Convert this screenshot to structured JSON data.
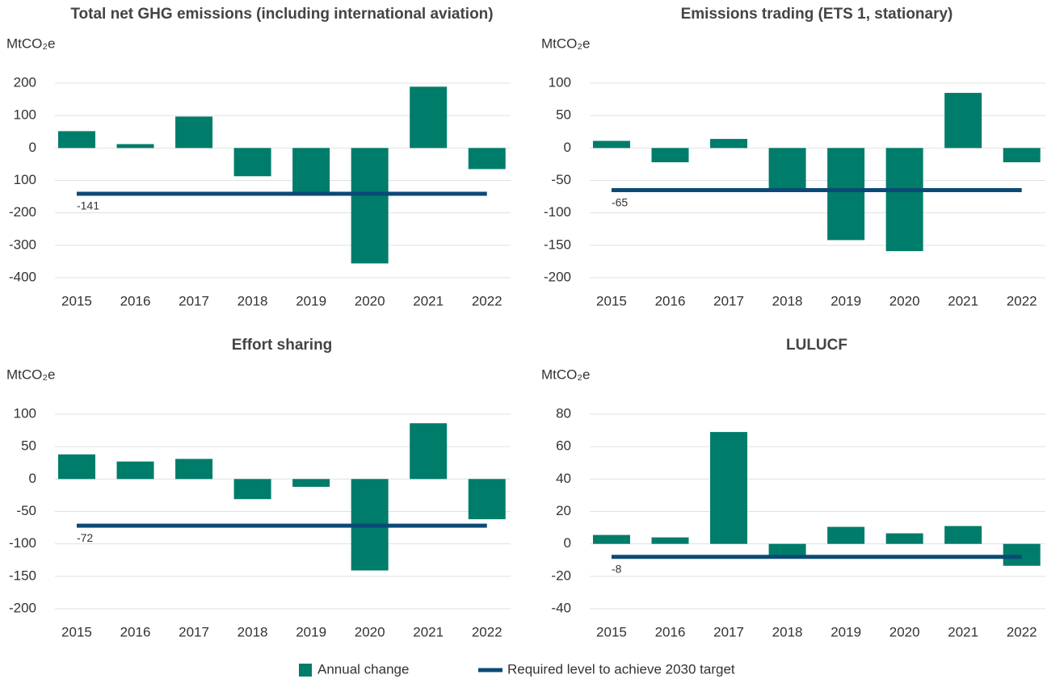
{
  "chart_data": [
    {
      "type": "bar",
      "title": "Total net GHG emissions (including international aviation)",
      "y_label": "MtCO₂e",
      "categories": [
        "2015",
        "2016",
        "2017",
        "2018",
        "2019",
        "2020",
        "2021",
        "2022"
      ],
      "values": [
        52,
        12,
        97,
        -87,
        -137,
        -356,
        189,
        -65
      ],
      "color": "#007c6a",
      "target": -141,
      "target_color": "#0b4a75",
      "ylim": [
        -400,
        200
      ],
      "yticks": [
        200,
        100,
        0,
        {
          "value": -100,
          "label": "100"
        },
        -200,
        -300,
        -400
      ],
      "grid": true
    },
    {
      "type": "bar",
      "title": "Emissions trading (ETS 1, stationary)",
      "y_label": "MtCO₂e",
      "categories": [
        "2015",
        "2016",
        "2017",
        "2018",
        "2019",
        "2020",
        "2021",
        "2022"
      ],
      "values": [
        11,
        -22,
        14,
        -62,
        -142,
        -159,
        85,
        -22
      ],
      "color": "#007c6a",
      "target": -65,
      "target_color": "#0b4a75",
      "ylim": [
        -200,
        100
      ],
      "yticks": [
        100,
        50,
        0,
        -50,
        -100,
        -150,
        -200
      ],
      "grid": true
    },
    {
      "type": "bar",
      "title": "Effort sharing",
      "y_label": "MtCO₂e",
      "categories": [
        "2015",
        "2016",
        "2017",
        "2018",
        "2019",
        "2020",
        "2021",
        "2022"
      ],
      "values": [
        38,
        27,
        31,
        -31,
        -12,
        -141,
        86,
        -62
      ],
      "color": "#007c6a",
      "target": -72,
      "target_color": "#0b4a75",
      "ylim": [
        -200,
        100
      ],
      "yticks": [
        100,
        50,
        0,
        -50,
        -100,
        -150,
        -200
      ],
      "grid": true
    },
    {
      "type": "bar",
      "title": "LULUCF",
      "y_label": "MtCO₂e",
      "categories": [
        "2015",
        "2016",
        "2017",
        "2018",
        "2019",
        "2020",
        "2021",
        "2022"
      ],
      "values": [
        5.5,
        4,
        69,
        -7,
        10.5,
        6.5,
        11,
        -13.5
      ],
      "color": "#007c6a",
      "target": -8,
      "target_color": "#0b4a75",
      "ylim": [
        -40,
        80
      ],
      "yticks": [
        80,
        60,
        40,
        20,
        0,
        -20,
        -40
      ],
      "grid": true
    }
  ],
  "legend": [
    {
      "name": "Annual change",
      "color": "#007c6a"
    },
    {
      "name": "Required level to achieve 2030 target",
      "color": "#0b4a75"
    }
  ]
}
